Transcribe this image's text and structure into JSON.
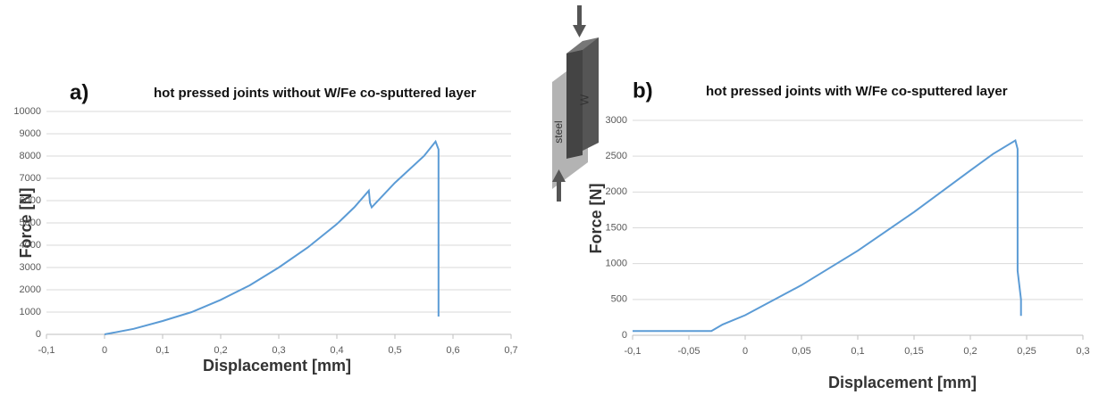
{
  "chart_data": [
    {
      "type": "line",
      "panel": "a)",
      "title": "hot pressed joints without W/Fe co-sputtered layer",
      "xlabel": "Displacement [mm]",
      "ylabel": "Force [N]",
      "color": "#5b9bd5",
      "grid": true,
      "x": [
        0,
        0.05,
        0.1,
        0.15,
        0.2,
        0.25,
        0.3,
        0.35,
        0.4,
        0.43,
        0.455,
        0.457,
        0.46,
        0.5,
        0.55,
        0.57,
        0.575,
        0.575
      ],
      "values": [
        0,
        250,
        600,
        1000,
        1550,
        2200,
        3000,
        3900,
        4950,
        5700,
        6450,
        5900,
        5700,
        6800,
        8000,
        8650,
        8300,
        800
      ],
      "xlim": [
        -0.1,
        0.7
      ],
      "xticks": [
        {
          "value": -0.1,
          "label": "-0,1"
        },
        0,
        {
          "value": 0.1,
          "label": "0,1"
        },
        {
          "value": 0.2,
          "label": "0,2"
        },
        {
          "value": 0.3,
          "label": "0,3"
        },
        {
          "value": 0.4,
          "label": "0,4"
        },
        {
          "value": 0.5,
          "label": "0,5"
        },
        {
          "value": 0.6,
          "label": "0,6"
        },
        {
          "value": 0.7,
          "label": "0,7"
        }
      ],
      "ylim": [
        0,
        10000
      ],
      "yticks": [
        0,
        1000,
        2000,
        3000,
        4000,
        5000,
        6000,
        7000,
        8000,
        9000,
        10000
      ]
    },
    {
      "type": "line",
      "panel": "b)",
      "title": "hot pressed joints with W/Fe co-sputtered layer",
      "xlabel": "Displacement [mm]",
      "ylabel": "Force [N]",
      "color": "#5b9bd5",
      "grid": true,
      "x": [
        -0.1,
        -0.03,
        -0.02,
        0,
        0.05,
        0.1,
        0.15,
        0.2,
        0.22,
        0.24,
        0.242,
        0.242,
        0.245,
        0.245
      ],
      "values": [
        60,
        60,
        150,
        280,
        700,
        1180,
        1720,
        2300,
        2530,
        2720,
        2600,
        900,
        500,
        270
      ],
      "xlim": [
        -0.1,
        0.3
      ],
      "xticks": [
        {
          "value": -0.1,
          "label": "-0,1"
        },
        {
          "value": -0.05,
          "label": "-0,05"
        },
        0,
        {
          "value": 0.05,
          "label": "0,05"
        },
        {
          "value": 0.1,
          "label": "0,1"
        },
        {
          "value": 0.15,
          "label": "0,15"
        },
        {
          "value": 0.2,
          "label": "0,2"
        },
        {
          "value": 0.25,
          "label": "0,25"
        },
        {
          "value": 0.3,
          "label": "0,3"
        }
      ],
      "ylim": [
        0,
        3000
      ],
      "yticks": [
        0,
        500,
        1000,
        1500,
        2000,
        2500,
        3000
      ]
    }
  ],
  "diagram": {
    "labels": [
      "W",
      "steel"
    ]
  }
}
